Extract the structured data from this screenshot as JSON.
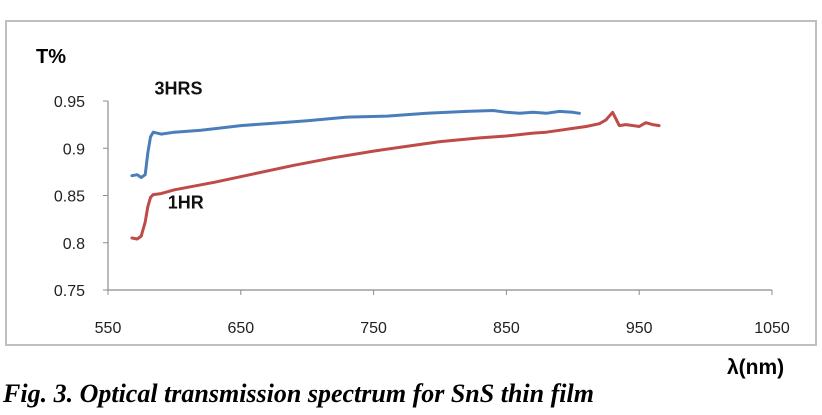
{
  "caption": "Fig. 3. Optical transmission spectrum for  SnS thin film",
  "chart_data": {
    "type": "line",
    "title": "",
    "xlabel": "λ(nm)",
    "ylabel": "T%",
    "xlim": [
      550,
      1050
    ],
    "ylim": [
      0.75,
      0.95
    ],
    "x_ticks": [
      "550",
      "650",
      "750",
      "850",
      "950",
      "1050"
    ],
    "y_ticks": [
      "0.75",
      "0.8",
      "0.85",
      "0.9",
      "0.95"
    ],
    "grid": false,
    "legend": "none",
    "annotations": [
      {
        "text": "3HRS",
        "x": 585,
        "y": 0.957
      },
      {
        "text": "1HR",
        "x": 595,
        "y": 0.836
      }
    ],
    "series": [
      {
        "color": "#4a7ebb",
        "x": [
          568,
          572,
          575,
          578,
          580,
          582,
          584,
          590,
          600,
          620,
          650,
          680,
          700,
          730,
          760,
          790,
          820,
          840,
          850,
          860,
          870,
          880,
          890,
          900,
          905
        ],
        "y": [
          0.871,
          0.872,
          0.869,
          0.872,
          0.895,
          0.912,
          0.917,
          0.915,
          0.917,
          0.919,
          0.924,
          0.927,
          0.929,
          0.933,
          0.934,
          0.937,
          0.939,
          0.94,
          0.938,
          0.937,
          0.938,
          0.937,
          0.939,
          0.938,
          0.937
        ]
      },
      {
        "color": "#be4b48",
        "x": [
          568,
          572,
          575,
          578,
          580,
          582,
          584,
          590,
          600,
          630,
          660,
          690,
          720,
          750,
          780,
          800,
          830,
          850,
          870,
          880,
          890,
          900,
          910,
          920,
          925,
          930,
          935,
          940,
          950,
          955,
          960,
          965
        ],
        "y": [
          0.805,
          0.804,
          0.807,
          0.822,
          0.838,
          0.848,
          0.851,
          0.852,
          0.856,
          0.864,
          0.873,
          0.882,
          0.89,
          0.897,
          0.903,
          0.907,
          0.911,
          0.913,
          0.916,
          0.917,
          0.919,
          0.921,
          0.923,
          0.926,
          0.93,
          0.938,
          0.924,
          0.925,
          0.923,
          0.927,
          0.925,
          0.924
        ]
      }
    ]
  }
}
